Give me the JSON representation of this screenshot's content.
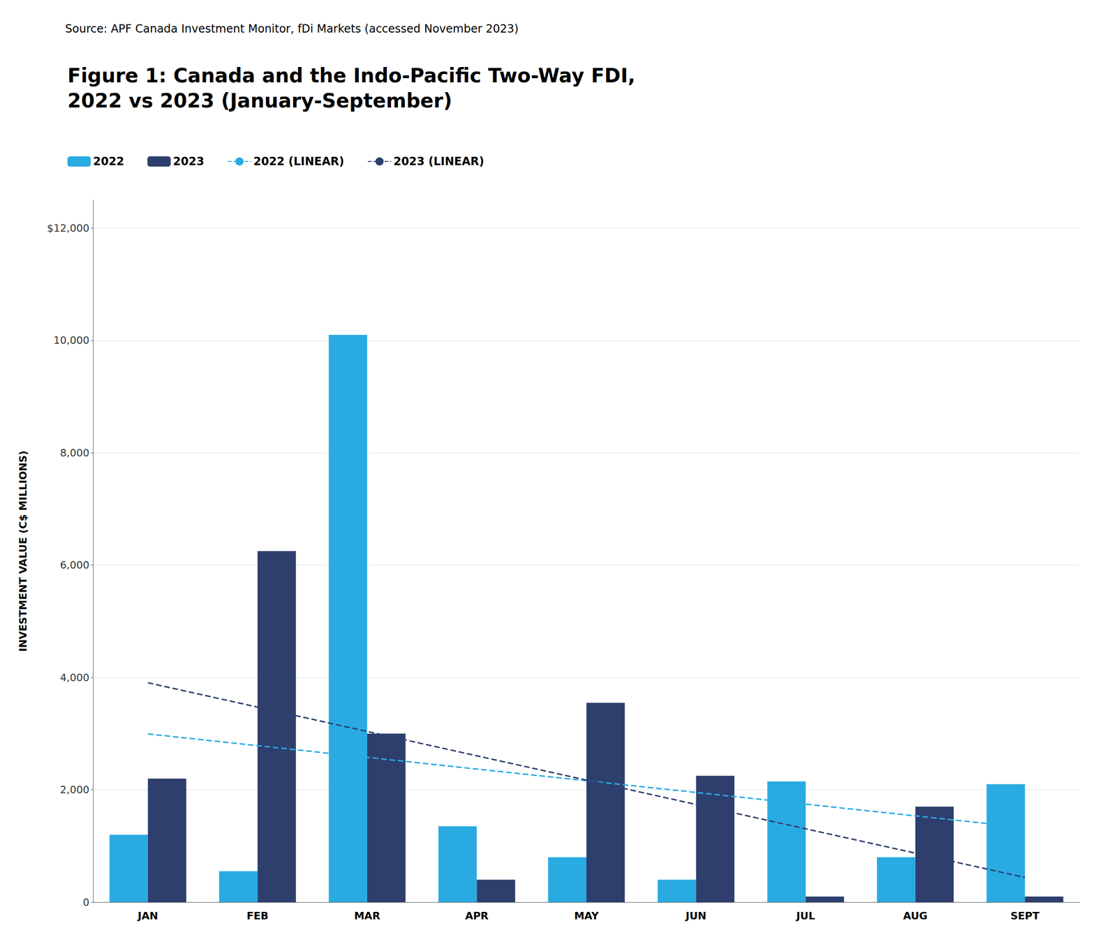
{
  "chart_data": {
    "type": "bar",
    "title": "Figure 1: Canada and the Indo-Pacific Two-Way FDI,\n2022 vs 2023 (January-September)",
    "annotations": [
      "Source: APF Canada Investment Monitor, fDi Markets (accessed November 2023)"
    ],
    "ylabel": "INVESTMENT VALUE (C$ MILLIONS)",
    "categories": [
      "JAN",
      "FEB",
      "MAR",
      "APR",
      "MAY",
      "JUN",
      "JUL",
      "AUG",
      "SEPT"
    ],
    "series": [
      {
        "name": "2022",
        "type": "bar",
        "color": "#29ABE2",
        "values": [
          1200,
          550,
          10100,
          1350,
          800,
          400,
          2150,
          800,
          2100
        ]
      },
      {
        "name": "2023",
        "type": "bar",
        "color": "#2E3F6E",
        "values": [
          2200,
          6250,
          3000,
          400,
          3550,
          2250,
          100,
          1700,
          100
        ]
      },
      {
        "name": "2022 (LINEAR)",
        "type": "line",
        "line_style": "dashed",
        "color": "#29ABE2",
        "values": [
          2994.444,
          2786.111,
          2577.778,
          2369.444,
          2161.111,
          1952.778,
          1744.444,
          1536.111,
          1327.778
        ]
      },
      {
        "name": "2023 (LINEAR)",
        "type": "line",
        "line_style": "dashed",
        "color": "#2E3F6E",
        "values": [
          3905.556,
          3472.222,
          3038.889,
          2605.556,
          2172.222,
          1738.889,
          1305.556,
          872.222,
          438.889
        ]
      }
    ],
    "ylim": [
      0,
      12500
    ],
    "yticks": [
      0,
      {
        "value": 2000,
        "label": "2,000"
      },
      {
        "value": 4000,
        "label": "4,000"
      },
      {
        "value": 6000,
        "label": "6,000"
      },
      {
        "value": 8000,
        "label": "8,000"
      },
      {
        "value": 10000,
        "label": "10,000"
      },
      {
        "value": 12000,
        "label": "$12,000"
      }
    ],
    "grid": true,
    "legend": "top-left"
  }
}
